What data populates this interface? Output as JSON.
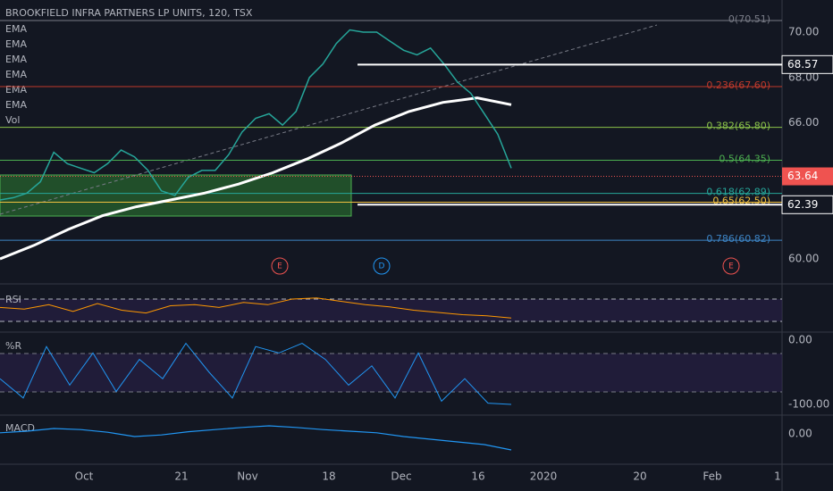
{
  "header": {
    "title": "BROOKFIELD INFRA PARTNERS LP UNITS, 120, TSX"
  },
  "indicators": [
    "EMA",
    "EMA",
    "EMA",
    "EMA",
    "EMA",
    "EMA",
    "Vol"
  ],
  "price_axis": [
    {
      "value": 70,
      "label": "70.00"
    },
    {
      "value": 68,
      "label": "68.00"
    },
    {
      "value": 66,
      "label": "66.00"
    },
    {
      "value": 60,
      "label": "60.00"
    }
  ],
  "price_tags": [
    {
      "value": 68.57,
      "label": "68.57",
      "style": "white"
    },
    {
      "value": 63.64,
      "label": "63.64",
      "style": "red"
    },
    {
      "value": 62.39,
      "label": "62.39",
      "style": "white"
    }
  ],
  "fib_levels": [
    {
      "value": 70.51,
      "label": "0(70.51)",
      "color": "#787b86"
    },
    {
      "value": 67.6,
      "label": "0.236(67.60)",
      "color": "#c0392b"
    },
    {
      "value": 65.8,
      "label": "0.382(65.80)",
      "color": "#8bc34a"
    },
    {
      "value": 64.35,
      "label": "0.5(64.35)",
      "color": "#4caf50"
    },
    {
      "value": 62.89,
      "label": "0.618(62.89)",
      "color": "#26a69a"
    },
    {
      "value": 62.5,
      "label": "0.65(62.50)",
      "color": "#f0c040"
    },
    {
      "value": 60.82,
      "label": "0.786(60.82)",
      "color": "#3d85c6"
    }
  ],
  "events": [
    "E",
    "D",
    "E"
  ],
  "close": [
    62.6,
    62.7,
    62.9,
    63.4,
    64.7,
    64.2,
    64.0,
    63.8,
    64.2,
    64.8,
    64.5,
    63.9,
    63.0,
    62.8,
    63.6,
    63.9,
    63.9,
    64.6,
    65.6,
    66.2,
    66.4,
    65.9,
    66.5,
    68.0,
    68.6,
    69.5,
    70.1,
    70.0,
    70.0,
    69.6,
    69.2,
    69.0,
    69.3,
    68.6,
    67.8,
    67.3,
    66.4,
    65.5,
    64.0
  ],
  "ema_long": [
    60.0,
    60.6,
    61.3,
    61.9,
    62.3,
    62.6,
    62.9,
    63.3,
    63.8,
    64.4,
    65.1,
    65.9,
    66.5,
    66.9,
    67.1,
    66.8
  ],
  "rsi": {
    "label": "RSI",
    "values": [
      55,
      52,
      60,
      48,
      62,
      50,
      45,
      58,
      60,
      55,
      64,
      60,
      70,
      72,
      66,
      60,
      56,
      50,
      46,
      42,
      40,
      36
    ]
  },
  "williams_r": {
    "label": "%R",
    "ticks": [
      {
        "value": 0,
        "label": "0.00"
      },
      {
        "value": -100,
        "label": "-100.00"
      }
    ],
    "values": [
      -60,
      -90,
      -10,
      -70,
      -20,
      -80,
      -30,
      -60,
      -5,
      -50,
      -90,
      -10,
      -20,
      -5,
      -30,
      -70,
      -40,
      -90,
      -20,
      -95,
      -60,
      -98,
      -100
    ]
  },
  "macd": {
    "label": "MACD",
    "tick": {
      "value": 0,
      "label": "0.00"
    },
    "values": [
      0.02,
      0.05,
      0.1,
      0.08,
      0.03,
      -0.05,
      -0.02,
      0.04,
      0.08,
      0.12,
      0.15,
      0.12,
      0.08,
      0.05,
      0.02,
      -0.05,
      -0.1,
      -0.15,
      -0.2,
      -0.3
    ]
  },
  "time_axis": [
    "Oct",
    "21",
    "Nov",
    "18",
    "Dec",
    "16",
    "2020",
    "20",
    "Feb",
    "1"
  ]
}
